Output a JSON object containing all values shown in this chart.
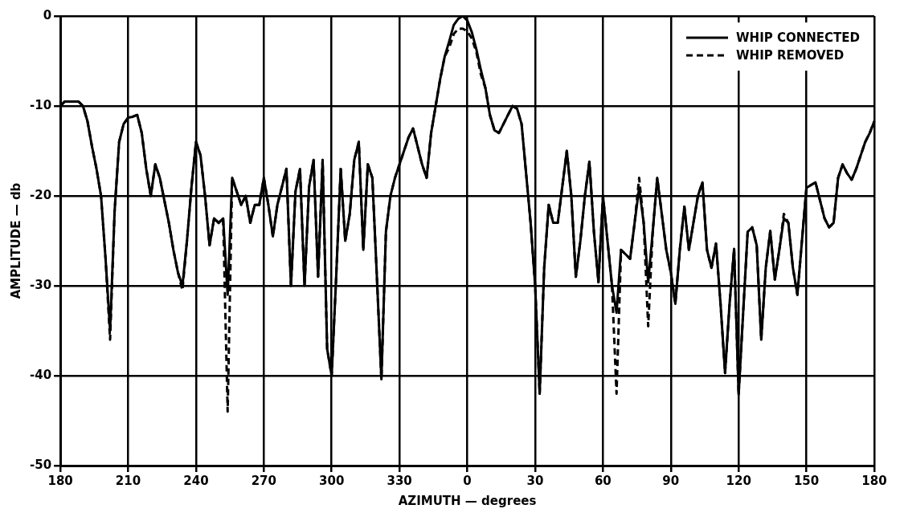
{
  "chart_data": {
    "type": "line",
    "xlabel": "AZIMUTH — degrees",
    "ylabel": "AMPLITUDE — db",
    "categories": [
      "180",
      null,
      null,
      null,
      null,
      null,
      null,
      null,
      null,
      null,
      null,
      null,
      null,
      null,
      null,
      "210",
      null,
      null,
      null,
      null,
      null,
      null,
      null,
      null,
      null,
      null,
      null,
      null,
      null,
      null,
      "240",
      null,
      null,
      null,
      null,
      null,
      null,
      null,
      null,
      null,
      null,
      null,
      null,
      null,
      null,
      "270",
      null,
      null,
      null,
      null,
      null,
      null,
      null,
      null,
      null,
      null,
      null,
      null,
      null,
      null,
      "300",
      null,
      null,
      null,
      null,
      null,
      null,
      null,
      null,
      null,
      null,
      null,
      null,
      null,
      null,
      "330",
      null,
      null,
      null,
      null,
      null,
      null,
      null,
      null,
      null,
      null,
      null,
      null,
      null,
      null,
      "0",
      null,
      null,
      null,
      null,
      null,
      null,
      null,
      null,
      null,
      null,
      null,
      null,
      null,
      null,
      "30",
      null,
      null,
      null,
      null,
      null,
      null,
      null,
      null,
      null,
      null,
      null,
      null,
      null,
      null,
      "60",
      null,
      null,
      null,
      null,
      null,
      null,
      null,
      null,
      null,
      null,
      null,
      null,
      null,
      null,
      "90",
      null,
      null,
      null,
      null,
      null,
      null,
      null,
      null,
      null,
      null,
      null,
      null,
      null,
      null,
      "120",
      null,
      null,
      null,
      null,
      null,
      null,
      null,
      null,
      null,
      null,
      null,
      null,
      null,
      null,
      "150",
      null,
      null,
      null,
      null,
      null,
      null,
      null,
      null,
      null,
      null,
      null,
      null,
      null,
      null,
      "180"
    ],
    "series": [
      {
        "name": "WHIP CONNECTED",
        "color": "#000000",
        "line_style": "solid",
        "values": [
          -10,
          -9.5,
          -9.5,
          -9.5,
          -9.5,
          -10,
          -11.7,
          -14.5,
          -17,
          -20,
          -27,
          -35,
          -21.7,
          -14,
          -12,
          -11.3,
          -11.2,
          -11,
          -13,
          -17,
          -20,
          -16.5,
          -18,
          -20.5,
          -23,
          -26,
          -28.5,
          -30,
          -25,
          -19,
          -14,
          -15.5,
          -20,
          -25.5,
          -22.5,
          -23,
          -22.5,
          -31,
          -18,
          -19.5,
          -21,
          -20,
          -23,
          -21,
          -21,
          -18,
          -21,
          -24.5,
          -21,
          -19,
          -17,
          -30,
          -19.5,
          -17,
          -30,
          -19,
          -16,
          -29,
          -16,
          -37,
          -40,
          -29,
          -17,
          -25,
          -22,
          -16,
          -14,
          -26,
          -16.5,
          -18,
          -29,
          -40.4,
          -24,
          -20,
          -18,
          -16.5,
          -15,
          -13.5,
          -12.5,
          -14.5,
          -16.5,
          -18,
          -13,
          -10,
          -7,
          -4.5,
          -2.8,
          -1,
          -0.3,
          0,
          -0.5,
          -1.8,
          -3.7,
          -6,
          -8,
          -11,
          -12.7,
          -13,
          -12,
          -11,
          -10,
          -10.3,
          -12,
          -17.5,
          -23,
          -30,
          -42,
          -28,
          -21,
          -23,
          -23,
          -19,
          -15,
          -20,
          -29,
          -25,
          -20,
          -16.2,
          -24,
          -29.6,
          -20,
          -25,
          -30,
          -33,
          -26,
          -26.5,
          -27,
          -23,
          -19.1,
          -23,
          -29.6,
          -24,
          -18,
          -22,
          -26,
          -28.5,
          -32,
          -26,
          -21.2,
          -26,
          -23,
          -20,
          -18.5,
          -26,
          -28,
          -25.3,
          -32,
          -39.7,
          -32,
          -25.9,
          -42.1,
          -33,
          -24,
          -23.5,
          -25.5,
          -36,
          -28,
          -23.9,
          -29.3,
          -26,
          -22.5,
          -23,
          -28,
          -31,
          -25,
          -19.1,
          -18.8,
          -18.5,
          -20.5,
          -22.5,
          -23.5,
          -23,
          -18,
          -16.5,
          -17.5,
          -18.2,
          -17,
          -15.5,
          -14,
          -13,
          -11.7
        ]
      },
      {
        "name": "WHIP REMOVED",
        "color": "#000000",
        "line_style": "dashed",
        "values": [
          -10,
          -9.5,
          -9.5,
          -9.5,
          -9.5,
          -10,
          -11.7,
          -14.5,
          -17,
          -20,
          -27,
          -36,
          -21.7,
          -14,
          -12,
          -11.3,
          -11.2,
          -11,
          -13,
          -17,
          -20,
          -16.5,
          -18,
          -20.5,
          -23,
          -26,
          -28.5,
          -30.5,
          -25,
          -19,
          -14,
          -15.5,
          -20,
          -25.5,
          -22.5,
          -23,
          -22.5,
          -44,
          -18,
          -19.5,
          -21,
          -20,
          -23,
          -21,
          -21,
          -18,
          -21,
          -24.5,
          -21,
          -19,
          -17,
          -30,
          -19.5,
          -17,
          -30,
          -19,
          -16,
          -29,
          -16,
          -37,
          -40,
          -29,
          -17,
          -25,
          -22,
          -16,
          -14,
          -26,
          -16.5,
          -18,
          -29,
          -40.4,
          -24,
          -20,
          -18,
          -16.5,
          -15,
          -13.5,
          -12.5,
          -14.5,
          -16.5,
          -18,
          -13,
          -10,
          -7,
          -4.5,
          -3.5,
          -2,
          -1.4,
          -1.4,
          -1.7,
          -2.5,
          -4,
          -6.5,
          -8,
          -11,
          -12.7,
          -13,
          -12,
          -11,
          -10,
          -10.3,
          -12,
          -17.5,
          -23,
          -30,
          -42,
          -28,
          -21,
          -23,
          -23,
          -19,
          -15,
          -20,
          -29,
          -25,
          -20,
          -16.2,
          -24,
          -29.6,
          -20,
          -25,
          -30,
          -42,
          -26,
          -26.5,
          -27,
          -23,
          -18,
          -23,
          -34.5,
          -24,
          -18,
          -22,
          -26,
          -28.5,
          -32,
          -26,
          -21.2,
          -26,
          -23,
          -20,
          -18.5,
          -26,
          -28,
          -25.3,
          -32,
          -39.7,
          -32,
          -25.9,
          -42.1,
          -33,
          -24,
          -23.5,
          -25.5,
          -36,
          -28,
          -23.9,
          -29.3,
          -26,
          -22,
          -23,
          -28,
          -31,
          -25,
          -19.1,
          -18.8,
          -18.5,
          -20.5,
          -22.5,
          -23.5,
          -23,
          -18,
          -16.5,
          -17.5,
          -18.2,
          -17,
          -15.5,
          -14,
          -13,
          -11.7
        ]
      }
    ],
    "ylim": [
      -50,
      0
    ],
    "yticks": [
      -50,
      -40,
      -30,
      -20,
      -10,
      0
    ],
    "grid": true,
    "legend": "top right",
    "marker": "none"
  }
}
